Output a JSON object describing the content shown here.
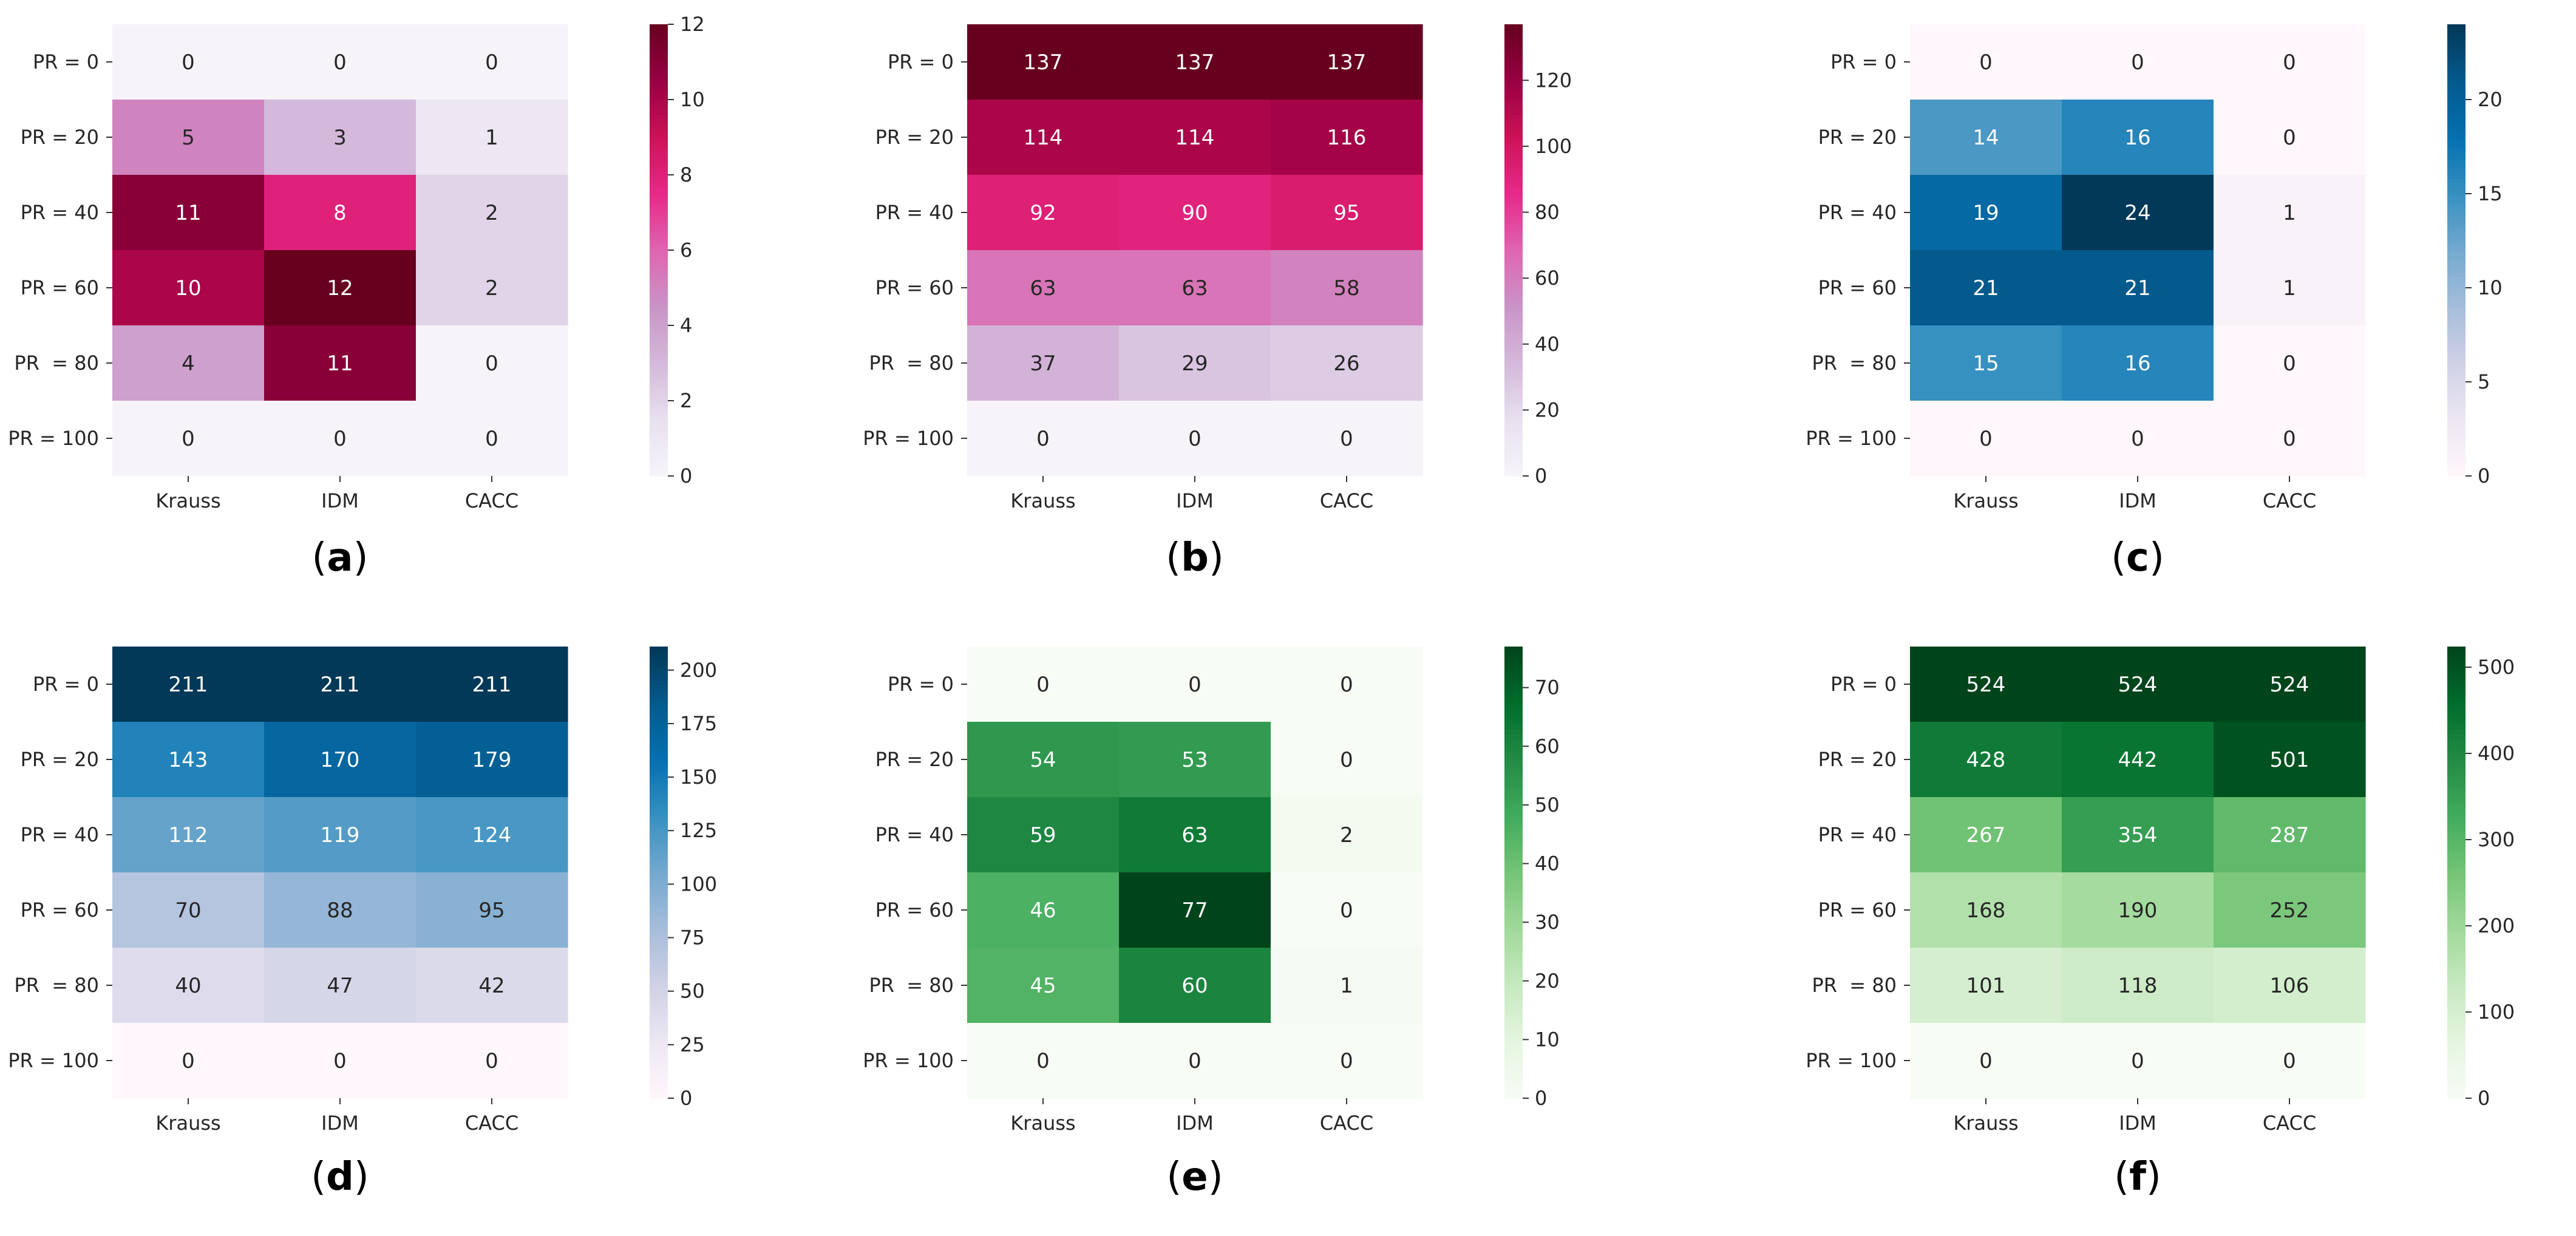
{
  "chart_data": [
    {
      "type": "heatmap",
      "panel_label": "a",
      "row_labels": [
        "PR = 0",
        "PR = 20",
        "PR = 40",
        "PR = 60",
        "PR  = 80",
        "PR = 100"
      ],
      "col_labels": [
        "Krauss",
        "IDM",
        "CACC"
      ],
      "values": [
        [
          0,
          0,
          0
        ],
        [
          5,
          3,
          1
        ],
        [
          11,
          8,
          2
        ],
        [
          10,
          12,
          2
        ],
        [
          4,
          11,
          0
        ],
        [
          0,
          0,
          0
        ]
      ],
      "colormap": "PuRd",
      "vmin": 0,
      "vmax": 12,
      "colorbar_ticks": [
        0,
        2,
        4,
        6,
        8,
        10,
        12
      ],
      "title": "",
      "xlabel": "",
      "ylabel": ""
    },
    {
      "type": "heatmap",
      "panel_label": "b",
      "row_labels": [
        "PR = 0",
        "PR = 20",
        "PR = 40",
        "PR = 60",
        "PR  = 80",
        "PR = 100"
      ],
      "col_labels": [
        "Krauss",
        "IDM",
        "CACC"
      ],
      "values": [
        [
          137,
          137,
          137
        ],
        [
          114,
          114,
          116
        ],
        [
          92,
          90,
          95
        ],
        [
          63,
          63,
          58
        ],
        [
          37,
          29,
          26
        ],
        [
          0,
          0,
          0
        ]
      ],
      "colormap": "PuRd",
      "vmin": 0,
      "vmax": 137,
      "colorbar_ticks": [
        0,
        20,
        40,
        60,
        80,
        100,
        120
      ],
      "title": "",
      "xlabel": "",
      "ylabel": ""
    },
    {
      "type": "heatmap",
      "panel_label": "c",
      "row_labels": [
        "PR = 0",
        "PR = 20",
        "PR = 40",
        "PR = 60",
        "PR  = 80",
        "PR = 100"
      ],
      "col_labels": [
        "Krauss",
        "IDM",
        "CACC"
      ],
      "values": [
        [
          0,
          0,
          0
        ],
        [
          14,
          16,
          0
        ],
        [
          19,
          24,
          1
        ],
        [
          21,
          21,
          1
        ],
        [
          15,
          16,
          0
        ],
        [
          0,
          0,
          0
        ]
      ],
      "colormap": "PuBu",
      "vmin": 0,
      "vmax": 24,
      "colorbar_ticks": [
        0,
        5,
        10,
        15,
        20
      ],
      "title": "",
      "xlabel": "",
      "ylabel": ""
    },
    {
      "type": "heatmap",
      "panel_label": "d",
      "row_labels": [
        "PR = 0",
        "PR = 20",
        "PR = 40",
        "PR = 60",
        "PR  = 80",
        "PR = 100"
      ],
      "col_labels": [
        "Krauss",
        "IDM",
        "CACC"
      ],
      "values": [
        [
          211,
          211,
          211
        ],
        [
          143,
          170,
          179
        ],
        [
          112,
          119,
          124
        ],
        [
          70,
          88,
          95
        ],
        [
          40,
          47,
          42
        ],
        [
          0,
          0,
          0
        ]
      ],
      "colormap": "PuBu",
      "vmin": 0,
      "vmax": 211,
      "colorbar_ticks": [
        0,
        25,
        50,
        75,
        100,
        125,
        150,
        175,
        200
      ],
      "title": "",
      "xlabel": "",
      "ylabel": ""
    },
    {
      "type": "heatmap",
      "panel_label": "e",
      "row_labels": [
        "PR = 0",
        "PR = 20",
        "PR = 40",
        "PR = 60",
        "PR  = 80",
        "PR = 100"
      ],
      "col_labels": [
        "Krauss",
        "IDM",
        "CACC"
      ],
      "values": [
        [
          0,
          0,
          0
        ],
        [
          54,
          53,
          0
        ],
        [
          59,
          63,
          2
        ],
        [
          46,
          77,
          0
        ],
        [
          45,
          60,
          1
        ],
        [
          0,
          0,
          0
        ]
      ],
      "colormap": "Greens",
      "vmin": 0,
      "vmax": 77,
      "colorbar_ticks": [
        0,
        10,
        20,
        30,
        40,
        50,
        60,
        70
      ],
      "title": "",
      "xlabel": "",
      "ylabel": ""
    },
    {
      "type": "heatmap",
      "panel_label": "f",
      "row_labels": [
        "PR = 0",
        "PR = 20",
        "PR = 40",
        "PR = 60",
        "PR  = 80",
        "PR = 100"
      ],
      "col_labels": [
        "Krauss",
        "IDM",
        "CACC"
      ],
      "values": [
        [
          524,
          524,
          524
        ],
        [
          428,
          442,
          501
        ],
        [
          267,
          354,
          287
        ],
        [
          168,
          190,
          252
        ],
        [
          101,
          118,
          106
        ],
        [
          0,
          0,
          0
        ]
      ],
      "colormap": "Greens",
      "vmin": 0,
      "vmax": 524,
      "colorbar_ticks": [
        0,
        100,
        200,
        300,
        400,
        500
      ],
      "title": "",
      "xlabel": "",
      "ylabel": ""
    }
  ]
}
